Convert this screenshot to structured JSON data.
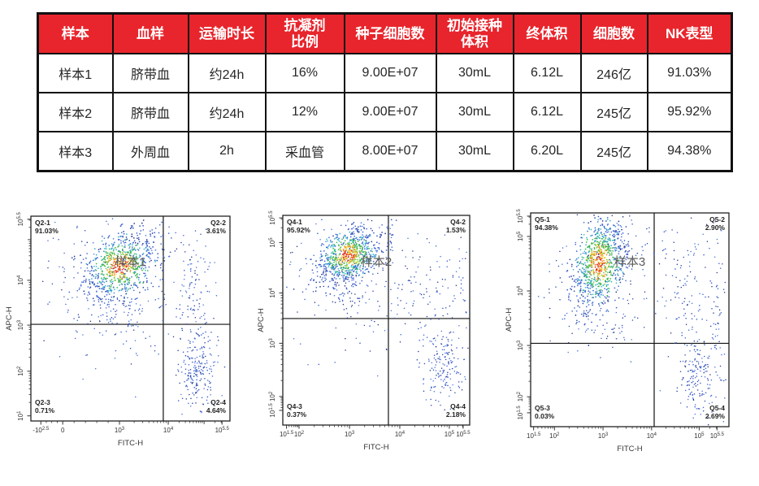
{
  "colors": {
    "table_header_bg": "#e8252c",
    "table_border": "#111111",
    "header_text": "#ffffff",
    "cell_text": "#262626",
    "axis": "#333333",
    "frame": "#222222",
    "divider": "#111111",
    "caption_text": "#595959",
    "dot_blue": [
      "#2b4cc0",
      "#3a64d6",
      "#24398f",
      "#4d74dc"
    ],
    "dot_cyan": "#35b5c9",
    "dot_green": [
      "#37b34a",
      "#7dc942"
    ],
    "dot_yellow": "#f2df30",
    "dot_orange": "#f0881e",
    "dot_red": "#e3261a"
  },
  "chart_data": [
    {
      "type": "table",
      "headers": [
        "样本",
        "血样",
        "运输时长",
        "抗凝剂\n比例",
        "种子细胞数",
        "初始接种\n体积",
        "终体积",
        "细胞数",
        "NK表型"
      ],
      "rows": [
        [
          "样本1",
          "脐带血",
          "约24h",
          "16%",
          "9.00E+07",
          "30mL",
          "6.12L",
          "246亿",
          "91.03%"
        ],
        [
          "样本2",
          "脐带血",
          "约24h",
          "12%",
          "9.00E+07",
          "30mL",
          "6.12L",
          "245亿",
          "95.92%"
        ],
        [
          "样本3",
          "外周血",
          "2h",
          "采血管",
          "8.00E+07",
          "30mL",
          "6.20L",
          "245亿",
          "94.38%"
        ]
      ]
    },
    {
      "type": "scatter",
      "caption": "样本1",
      "xlabel": "FITC-H",
      "ylabel": "APC-H",
      "x_ticks": [
        {
          "label": "-10^2.5",
          "f": 0.05
        },
        {
          "label": "0",
          "f": 0.16
        },
        {
          "label": "10^3",
          "f": 0.445
        },
        {
          "label": "10^4",
          "f": 0.69
        },
        {
          "label": "10^5.5",
          "f": 0.96
        }
      ],
      "y_ticks": [
        {
          "label": "10^1",
          "f": 0.025
        },
        {
          "label": "10^2",
          "f": 0.243
        },
        {
          "label": "10^3",
          "f": 0.468
        },
        {
          "label": "10^4",
          "f": 0.687
        },
        {
          "label": "10^5.5",
          "f": 0.985
        }
      ],
      "divider": {
        "x_f": 0.665,
        "y_f": 0.472
      },
      "quadrants": [
        {
          "name": "Q2-1",
          "value": "91.03%",
          "pos": "tl"
        },
        {
          "name": "Q2-2",
          "value": "3.61%",
          "pos": "tr"
        },
        {
          "name": "Q2-3",
          "value": "0.71%",
          "pos": "bl"
        },
        {
          "name": "Q2-4",
          "value": "4.64%",
          "pos": "br"
        }
      ],
      "seed": 11,
      "clusters": [
        {
          "fx": 0.45,
          "fy": 0.755,
          "sx": 0.095,
          "sy": 0.085,
          "rho": 0.35,
          "n": 750,
          "mode": "density"
        },
        {
          "fx": 0.44,
          "fy": 0.74,
          "sx": 0.2,
          "sy": 0.17,
          "rho": 0.2,
          "n": 150,
          "mode": "blue"
        },
        {
          "fx": 0.46,
          "fy": 0.55,
          "sx": 0.08,
          "sy": 0.09,
          "rho": 0,
          "n": 100,
          "mode": "blue"
        },
        {
          "fx": 0.82,
          "fy": 0.6,
          "sx": 0.055,
          "sy": 0.14,
          "rho": 0,
          "n": 120,
          "mode": "blue"
        },
        {
          "fx": 0.83,
          "fy": 0.24,
          "sx": 0.045,
          "sy": 0.1,
          "rho": 0,
          "n": 200,
          "mode": "blue"
        },
        {
          "fx": 0.38,
          "fy": 0.33,
          "sx": 0.18,
          "sy": 0.1,
          "rho": 0,
          "n": 25,
          "mode": "blue"
        }
      ]
    },
    {
      "type": "scatter",
      "caption": "样本2",
      "xlabel": "FITC-H",
      "ylabel": "APC-H",
      "x_ticks": [
        {
          "label": "10^1.5",
          "f": 0.02
        },
        {
          "label": "10^2",
          "f": 0.087
        },
        {
          "label": "10^3",
          "f": 0.357
        },
        {
          "label": "10^4",
          "f": 0.626
        },
        {
          "label": "10^5",
          "f": 0.891
        },
        {
          "label": "10^5.5",
          "f": 0.965
        }
      ],
      "y_ticks": [
        {
          "label": "10^1.5",
          "f": 0.07
        },
        {
          "label": "10^2",
          "f": 0.136
        },
        {
          "label": "10^3",
          "f": 0.39
        },
        {
          "label": "10^4",
          "f": 0.63
        },
        {
          "label": "10^5",
          "f": 0.87
        },
        {
          "label": "10^5.5",
          "f": 0.988
        }
      ],
      "divider": {
        "x_f": 0.565,
        "y_f": 0.508
      },
      "quadrants": [
        {
          "name": "Q4-1",
          "value": "95.92%",
          "pos": "tl"
        },
        {
          "name": "Q4-2",
          "value": "1.53%",
          "pos": "tr"
        },
        {
          "name": "Q4-3",
          "value": "0.37%",
          "pos": "bl"
        },
        {
          "name": "Q4-4",
          "value": "2.18%",
          "pos": "br"
        }
      ],
      "seed": 23,
      "clusters": [
        {
          "fx": 0.35,
          "fy": 0.81,
          "sx": 0.085,
          "sy": 0.065,
          "rho": 0.45,
          "n": 750,
          "mode": "density"
        },
        {
          "fx": 0.34,
          "fy": 0.79,
          "sx": 0.17,
          "sy": 0.13,
          "rho": 0.3,
          "n": 140,
          "mode": "blue"
        },
        {
          "fx": 0.37,
          "fy": 0.62,
          "sx": 0.07,
          "sy": 0.09,
          "rho": 0,
          "n": 70,
          "mode": "blue"
        },
        {
          "fx": 0.75,
          "fy": 0.62,
          "sx": 0.1,
          "sy": 0.15,
          "rho": 0,
          "n": 110,
          "mode": "blue"
        },
        {
          "fx": 0.86,
          "fy": 0.27,
          "sx": 0.055,
          "sy": 0.1,
          "rho": 0,
          "n": 160,
          "mode": "blue"
        },
        {
          "fx": 0.45,
          "fy": 0.42,
          "sx": 0.15,
          "sy": 0.06,
          "rho": 0,
          "n": 20,
          "mode": "blue"
        },
        {
          "fx": 0.95,
          "fy": 0.75,
          "sx": 0.03,
          "sy": 0.15,
          "rho": 0,
          "n": 25,
          "mode": "blue"
        }
      ]
    },
    {
      "type": "scatter",
      "caption": "样本3",
      "xlabel": "FITC-H",
      "ylabel": "APC-H",
      "x_ticks": [
        {
          "label": "10^1.5",
          "f": 0.015
        },
        {
          "label": "10^2",
          "f": 0.12
        },
        {
          "label": "10^3",
          "f": 0.365
        },
        {
          "label": "10^4",
          "f": 0.61
        },
        {
          "label": "10^5",
          "f": 0.85
        },
        {
          "label": "10^5.5",
          "f": 0.94
        }
      ],
      "y_ticks": [
        {
          "label": "10^1.5",
          "f": 0.065
        },
        {
          "label": "10^2",
          "f": 0.14
        },
        {
          "label": "10^3",
          "f": 0.38
        },
        {
          "label": "10^4",
          "f": 0.635
        },
        {
          "label": "10^5",
          "f": 0.89
        },
        {
          "label": "10^5.5",
          "f": 0.985
        }
      ],
      "divider": {
        "x_f": 0.623,
        "y_f": 0.39
      },
      "quadrants": [
        {
          "name": "Q5-1",
          "value": "94.38%",
          "pos": "tl"
        },
        {
          "name": "Q5-2",
          "value": "2.90%",
          "pos": "tr"
        },
        {
          "name": "Q5-3",
          "value": "0.03%",
          "pos": "bl"
        },
        {
          "name": "Q5-4",
          "value": "2.69%",
          "pos": "br"
        }
      ],
      "seed": 37,
      "clusters": [
        {
          "fx": 0.345,
          "fy": 0.765,
          "sx": 0.07,
          "sy": 0.11,
          "rho": 0.4,
          "n": 850,
          "mode": "density"
        },
        {
          "fx": 0.36,
          "fy": 0.72,
          "sx": 0.16,
          "sy": 0.16,
          "rho": 0.3,
          "n": 150,
          "mode": "blue"
        },
        {
          "fx": 0.79,
          "fy": 0.62,
          "sx": 0.08,
          "sy": 0.15,
          "rho": 0,
          "n": 110,
          "mode": "blue"
        },
        {
          "fx": 0.945,
          "fy": 0.55,
          "sx": 0.025,
          "sy": 0.22,
          "rho": 0,
          "n": 55,
          "mode": "blue"
        },
        {
          "fx": 0.84,
          "fy": 0.235,
          "sx": 0.05,
          "sy": 0.09,
          "rho": 0,
          "n": 160,
          "mode": "blue"
        },
        {
          "fx": 0.42,
          "fy": 0.47,
          "sx": 0.09,
          "sy": 0.06,
          "rho": 0,
          "n": 40,
          "mode": "blue"
        }
      ]
    }
  ]
}
